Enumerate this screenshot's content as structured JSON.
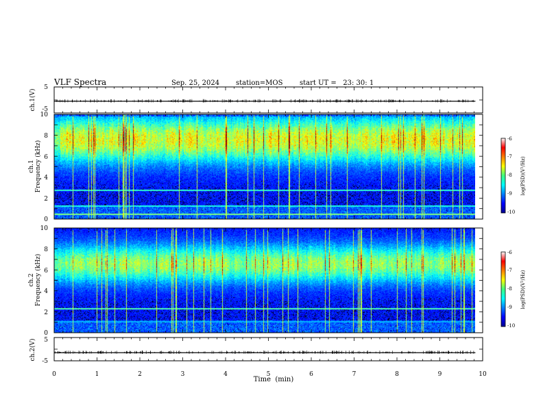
{
  "header": {
    "title": "VLF Spectra",
    "date": "Sep. 25, 2024",
    "station": "station=MOS",
    "start_ut": "start UT =   23: 30: 1"
  },
  "chart_data": [
    {
      "id": "ch1_waveform",
      "type": "line",
      "ylabel": "ch.1(V)",
      "ylim": [
        -5,
        5
      ],
      "yticks": [
        "5",
        "-5"
      ],
      "baseline_value": -0.5
    },
    {
      "id": "ch1_spectrogram",
      "type": "heatmap",
      "ylabel_line1": "ch.1",
      "ylabel_line2": "Frequency (kHz)",
      "ylim": [
        0,
        10
      ],
      "yticks": [
        "0",
        "2",
        "4",
        "6",
        "8",
        "10"
      ],
      "data_end_min": 9.83,
      "colorbar": {
        "label": "log(PSD)(V²/Hz)",
        "range": [
          -10,
          -6
        ],
        "ticks": [
          "-6",
          "-7",
          "-8",
          "-9",
          "-10"
        ]
      },
      "features": "broadband activity strongest 5-9 kHz with vertical sferic streaks; persistent narrowband lines near 2.8 kHz and 1.3 kHz"
    },
    {
      "id": "ch2_spectrogram",
      "type": "heatmap",
      "ylabel_line1": "ch.2",
      "ylabel_line2": "Frequency (kHz)",
      "ylim": [
        0,
        10
      ],
      "yticks": [
        "0",
        "2",
        "4",
        "6",
        "8",
        "10"
      ],
      "data_end_min": 9.83,
      "colorbar": {
        "label": "log(PSD)(V²/Hz)",
        "range": [
          -10,
          -6
        ],
        "ticks": [
          "-6",
          "-7",
          "-8",
          "-9",
          "-10"
        ]
      },
      "features": "activity band centered near 6.5 kHz, weaker than ch.1; narrowband line near 2.3 kHz"
    },
    {
      "id": "ch2_waveform",
      "type": "line",
      "ylabel": "ch.2(V)",
      "ylim": [
        -5,
        5
      ],
      "yticks": [
        "5",
        "-5"
      ],
      "baseline_value": -1.5
    }
  ],
  "xaxis": {
    "label": "Time  (min)",
    "range": [
      0,
      10
    ],
    "ticks": [
      "0",
      "1",
      "2",
      "3",
      "4",
      "5",
      "6",
      "7",
      "8",
      "9",
      "10"
    ]
  }
}
